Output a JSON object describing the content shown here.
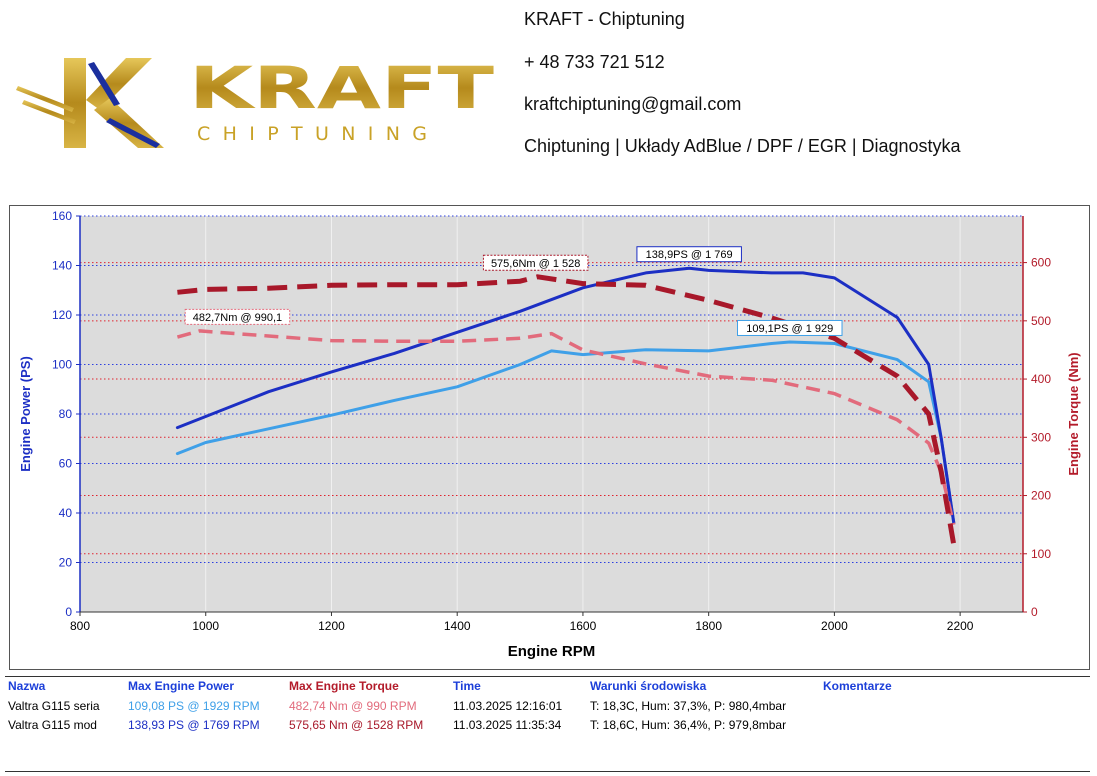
{
  "header": {
    "brand_word": "KRAFT",
    "brand_sub": "CHIPTUNING",
    "contact_lines": [
      "KRAFT - Chiptuning",
      "+ 48 733 721 512",
      "kraftchiptuning@gmail.com",
      "Chiptuning | Układy AdBlue / DPF / EGR | Diagnostyka"
    ]
  },
  "colors": {
    "power_stock": "#3fa0e8",
    "power_mod": "#1c2fc4",
    "torque_stock": "#e26b7c",
    "torque_mod": "#a8182a",
    "logo_gold": "#c9a227",
    "plot_bg": "#dcdcdc"
  },
  "chart_data": {
    "type": "line",
    "title": "",
    "xlabel": "Engine RPM",
    "ylabel": "Engine Power (PS)",
    "y2label": "Engine Torque (Nm)",
    "xlim": [
      800,
      2300
    ],
    "ylim": [
      0,
      160
    ],
    "y2lim": [
      0,
      680
    ],
    "xticks": [
      800,
      1000,
      1200,
      1400,
      1600,
      1800,
      2000,
      2200
    ],
    "yticks": [
      0,
      20,
      40,
      60,
      80,
      100,
      120,
      140,
      160
    ],
    "y2ticks": [
      0,
      100,
      200,
      300,
      400,
      500,
      600
    ],
    "grid": true,
    "series": [
      {
        "name": "Valtra G115 seria",
        "quantity": "power",
        "axis": "left",
        "style": "solid",
        "color": "#3fa0e8",
        "x": [
          955,
          1000,
          1100,
          1200,
          1300,
          1400,
          1500,
          1550,
          1600,
          1700,
          1800,
          1900,
          1929,
          2000,
          2100,
          2150,
          2170,
          2190
        ],
        "y": [
          64,
          68.5,
          74,
          79.5,
          85.5,
          91,
          100,
          105.5,
          104,
          106,
          105.5,
          108.5,
          109.1,
          108.5,
          102,
          93,
          70,
          36
        ]
      },
      {
        "name": "Valtra G115 mod",
        "quantity": "power",
        "axis": "left",
        "style": "solid",
        "color": "#1c2fc4",
        "x": [
          955,
          1000,
          1100,
          1200,
          1300,
          1400,
          1500,
          1600,
          1700,
          1769,
          1800,
          1900,
          1950,
          2000,
          2100,
          2150,
          2170,
          2190
        ],
        "y": [
          74.5,
          79,
          89,
          97,
          104.5,
          113,
          121.5,
          131,
          137,
          138.9,
          138,
          137,
          137,
          135,
          119,
          100,
          70,
          36
        ]
      },
      {
        "name": "Valtra G115 seria",
        "quantity": "torque",
        "axis": "right",
        "style": "dashed",
        "color": "#e26b7c",
        "x": [
          955,
          990,
          1100,
          1200,
          1300,
          1400,
          1500,
          1550,
          1600,
          1700,
          1800,
          1900,
          2000,
          2100,
          2150,
          2170,
          2190
        ],
        "y": [
          472,
          482.7,
          474,
          466,
          465,
          465,
          470,
          478,
          450,
          426,
          405,
          398,
          375,
          330,
          290,
          240,
          150
        ]
      },
      {
        "name": "Valtra G115 mod",
        "quantity": "torque",
        "axis": "right",
        "style": "dashed",
        "color": "#a8182a",
        "x": [
          955,
          1000,
          1100,
          1200,
          1300,
          1400,
          1500,
          1528,
          1600,
          1700,
          1800,
          1900,
          2000,
          2100,
          2150,
          2170,
          2190
        ],
        "y": [
          549,
          554,
          556,
          561,
          562,
          562,
          568,
          575.6,
          564,
          561,
          535,
          505,
          470,
          405,
          340,
          240,
          115
        ]
      }
    ],
    "annotations": [
      {
        "text": "138,9PS @ 1 769",
        "x": 1769,
        "y": 138.9,
        "axis": "left",
        "color": "#1c2fc4"
      },
      {
        "text": "109,1PS @ 1 929",
        "x": 1929,
        "y": 109.1,
        "axis": "left",
        "color": "#3fa0e8"
      },
      {
        "text": "575,6Nm @ 1 528",
        "x": 1528,
        "y": 575.6,
        "axis": "right",
        "color": "#a8182a"
      },
      {
        "text": "482,7Nm @ 990,1",
        "x": 990,
        "y": 482.7,
        "axis": "right",
        "color": "#e26b7c"
      }
    ]
  },
  "table": {
    "headers": {
      "name": "Nazwa",
      "power": "Max Engine Power",
      "torque": "Max Engine Torque",
      "time": "Time",
      "env": "Warunki środowiska",
      "comment": "Komentarze"
    },
    "rows": [
      {
        "name": "Valtra G115 seria",
        "power": "109,08 PS @ 1929 RPM",
        "torque": "482,74 Nm @ 990 RPM",
        "time": "11.03.2025 12:16:01",
        "env": "T: 18,3C, Hum: 37,3%, P: 980,4mbar",
        "comment": ""
      },
      {
        "name": "Valtra G115 mod",
        "power": "138,93 PS @ 1769 RPM",
        "torque": "575,65 Nm @ 1528 RPM",
        "time": "11.03.2025 11:35:34",
        "env": "T: 18,6C, Hum: 36,4%, P: 979,8mbar",
        "comment": ""
      }
    ]
  }
}
